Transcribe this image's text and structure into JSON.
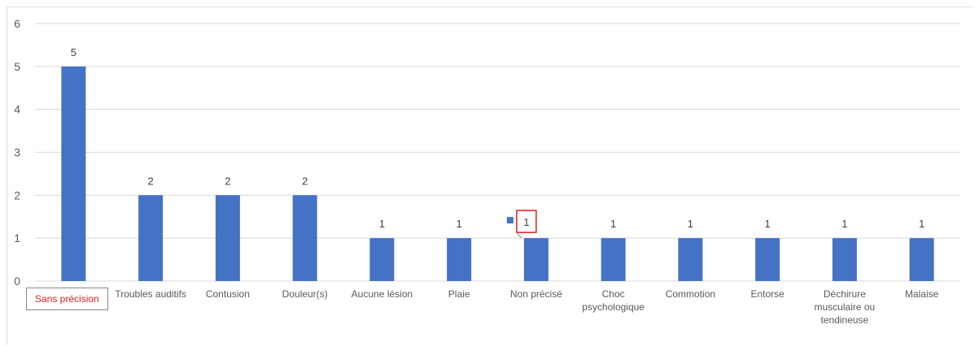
{
  "chart_data": {
    "type": "bar",
    "categories": [
      "Sans précision",
      "Troubles auditifs",
      "Contusion",
      "Douleur(s)",
      "Aucune lésion",
      "Plaie",
      "Non précisé",
      "Choc psychologique",
      "Commotion",
      "Entorse",
      "Déchirure musculaire ou tendineuse",
      "Malaise"
    ],
    "category_lines": [
      [
        "Sans précision"
      ],
      [
        "Troubles auditifs"
      ],
      [
        "Contusion"
      ],
      [
        "Douleur(s)"
      ],
      [
        "Aucune lésion"
      ],
      [
        "Plaie"
      ],
      [
        "Non précisé"
      ],
      [
        "Choc",
        "psychologique"
      ],
      [
        "Commotion"
      ],
      [
        "Entorse"
      ],
      [
        "Déchirure",
        "musculaire ou",
        "tendineuse"
      ],
      [
        "Malaise"
      ]
    ],
    "values": [
      5,
      2,
      2,
      2,
      1,
      1,
      1,
      1,
      1,
      1,
      1,
      1
    ],
    "ylim": [
      0,
      6
    ],
    "yticks": [
      0,
      1,
      2,
      3,
      4,
      5,
      6
    ],
    "title": "",
    "xlabel": "",
    "ylabel": "",
    "grid": true,
    "bar_color": "#4472c4",
    "grid_color": "#d9d9d9",
    "highlight_label_color": "#d9231f",
    "highlight_box_color": "#e0201c",
    "highlighted_category": "Sans précision",
    "highlighted_data_label": "Non précisé"
  }
}
